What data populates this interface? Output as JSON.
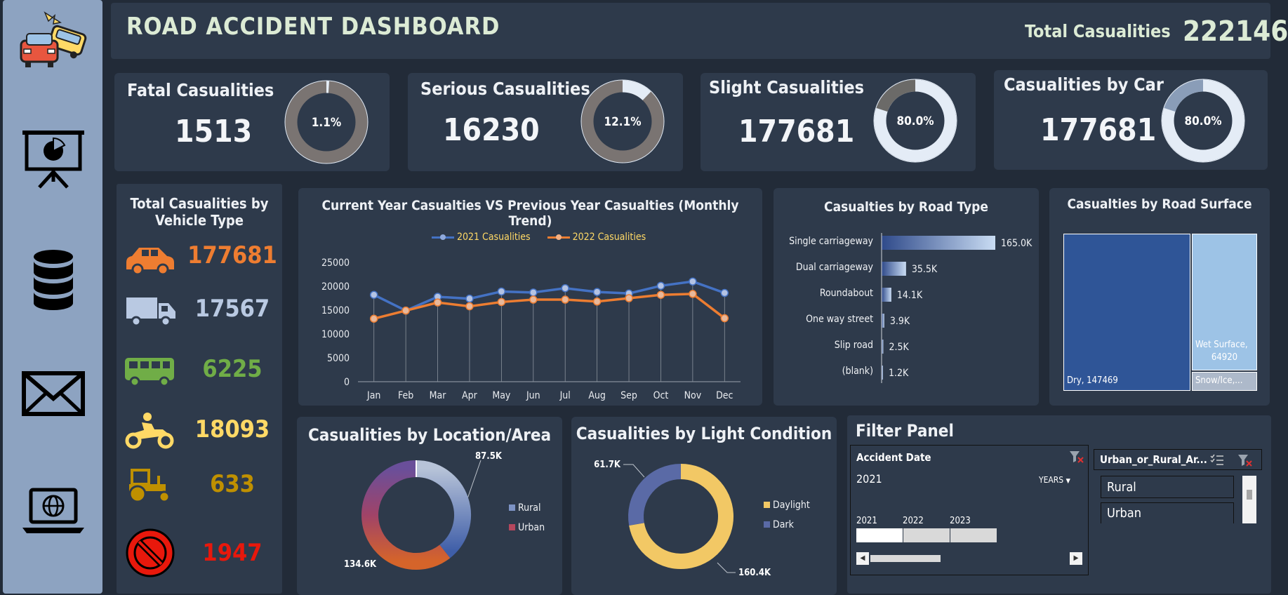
{
  "header": {
    "title": "ROAD ACCIDENT DASHBOARD",
    "total_label": "Total Casualities",
    "total_value": "222146"
  },
  "sidebar": {
    "icons": [
      "car-crash-icon",
      "presentation-chart-icon",
      "database-icon",
      "mail-icon",
      "laptop-globe-icon"
    ]
  },
  "kpis": [
    {
      "label": "Fatal Casualities",
      "value": "1513",
      "pct_label": "1.1%",
      "pct": 0.011
    },
    {
      "label": "Serious Casualities",
      "value": "16230",
      "pct_label": "12.1%",
      "pct": 0.121
    },
    {
      "label": "Slight Casualities",
      "value": "177681",
      "pct_label": "80.0%",
      "pct": 0.8
    },
    {
      "label": "Casualities by Car",
      "value": "177681",
      "pct_label": "80.0%",
      "pct": 0.8
    }
  ],
  "vehicle": {
    "title_line1": "Total Casualities by",
    "title_line2": "Vehicle Type",
    "items": [
      {
        "icon": "car-icon",
        "value": "177681",
        "color": "#ee7d31"
      },
      {
        "icon": "truck-icon",
        "value": "17567",
        "color": "#b9c9e2"
      },
      {
        "icon": "bus-icon",
        "value": "6225",
        "color": "#70ad47"
      },
      {
        "icon": "motorbike-icon",
        "value": "18093",
        "color": "#ffd966"
      },
      {
        "icon": "tractor-icon",
        "value": "633",
        "color": "#bf9000"
      },
      {
        "icon": "no-entry-icon",
        "value": "1947",
        "color": "#e8180c"
      }
    ]
  },
  "chart_data": [
    {
      "type": "line",
      "title": "Current Year Casualties VS Previous Year Casualties (Monthly Trend)",
      "categories": [
        "Jan",
        "Feb",
        "Mar",
        "Apr",
        "May",
        "Jun",
        "Jul",
        "Aug",
        "Sep",
        "Oct",
        "Nov",
        "Dec"
      ],
      "series": [
        {
          "name": "2021 Casualities",
          "color": "#4472c4",
          "values": [
            18200,
            14900,
            17800,
            17400,
            18900,
            18700,
            19600,
            18800,
            18500,
            20100,
            21000,
            18600
          ]
        },
        {
          "name": "2022 Casualities",
          "color": "#ed7d31",
          "values": [
            13200,
            14900,
            16600,
            15800,
            16700,
            17200,
            17200,
            16800,
            17500,
            18200,
            18400,
            13300
          ]
        }
      ],
      "yticks": [
        0,
        5000,
        10000,
        15000,
        20000,
        25000
      ],
      "ylim": [
        0,
        25000
      ]
    },
    {
      "type": "bar",
      "title": "Casualties by Road Type",
      "categories": [
        "Single carriageway",
        "Dual carriageway",
        "Roundabout",
        "One way street",
        "Slip road",
        "(blank)"
      ],
      "values": [
        165000,
        35500,
        14100,
        3900,
        2500,
        1200
      ],
      "labels": [
        "165.0K",
        "35.5K",
        "14.1K",
        "3.9K",
        "2.5K",
        "1.2K"
      ]
    },
    {
      "type": "treemap",
      "title": "Casualties by Road Surface",
      "items": [
        {
          "label": "Dry, 147469",
          "value": 147469,
          "color": "#2f5597"
        },
        {
          "label": "Wet Surface,",
          "label2": "64920",
          "value": 64920,
          "color": "#9dc3e6"
        },
        {
          "label": "Snow/Ice,...",
          "value": 9757,
          "color": "#adb9ca"
        }
      ]
    },
    {
      "type": "pie",
      "title": "Casualities by Location/Area",
      "slices": [
        {
          "name": "Rural",
          "value": 87500,
          "label": "87.5K"
        },
        {
          "name": "Urban",
          "value": 134600,
          "label": "134.6K"
        }
      ]
    },
    {
      "type": "pie",
      "title": "Casualities by Light Condition",
      "slices": [
        {
          "name": "Daylight",
          "value": 160400,
          "label": "160.4K",
          "color": "#f2c865"
        },
        {
          "name": "Dark",
          "value": 61700,
          "label": "61.7K",
          "color": "#5a6aa6"
        }
      ]
    }
  ],
  "filter": {
    "title": "Filter Panel",
    "date": {
      "header": "Accident Date",
      "selected": "2021",
      "unit": "YEARS",
      "years": [
        "2021",
        "2022",
        "2023"
      ]
    },
    "area": {
      "header": "Urban_or_Rural_Ar...",
      "options": [
        "Rural",
        "Urban"
      ]
    }
  }
}
